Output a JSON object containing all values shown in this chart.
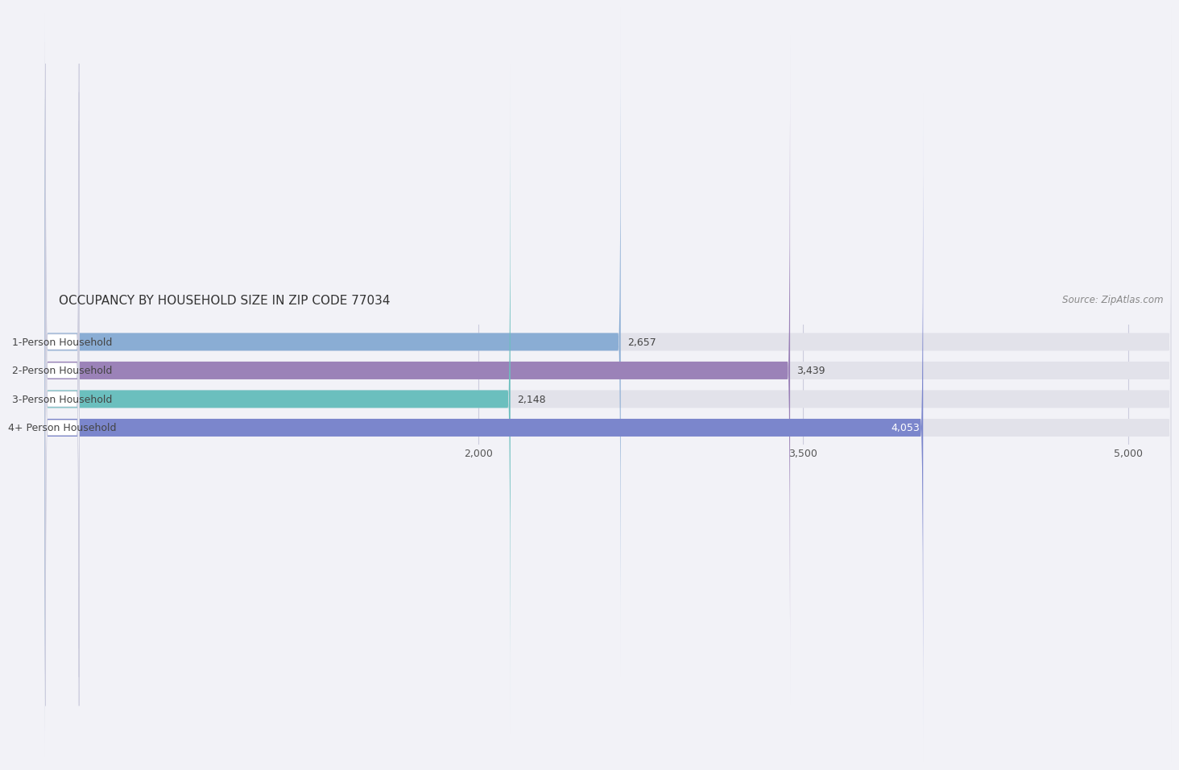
{
  "title": "OCCUPANCY BY HOUSEHOLD SIZE IN ZIP CODE 77034",
  "source": "Source: ZipAtlas.com",
  "categories": [
    "1-Person Household",
    "2-Person Household",
    "3-Person Household",
    "4+ Person Household"
  ],
  "values": [
    2657,
    3439,
    2148,
    4053
  ],
  "bar_colors": [
    "#8aadd4",
    "#9b82b8",
    "#6bbfbe",
    "#7b86cc"
  ],
  "value_labels": [
    "2,657",
    "3,439",
    "2,148",
    "4,053"
  ],
  "xlim": [
    0,
    5200
  ],
  "xticks": [
    2000,
    3500,
    5000
  ],
  "xtick_labels": [
    "2,000",
    "3,500",
    "5,000"
  ],
  "bar_height": 0.62,
  "background_color": "#f2f2f7",
  "bar_bg_color": "#e2e2ea",
  "title_fontsize": 11,
  "label_fontsize": 9,
  "tick_fontsize": 9,
  "source_fontsize": 8.5
}
